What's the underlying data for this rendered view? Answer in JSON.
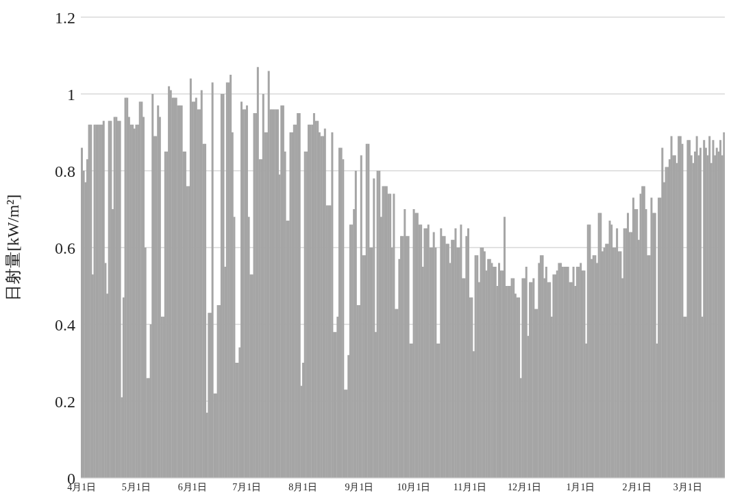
{
  "chart_data": {
    "type": "bar",
    "ylabel": "日射量[kW/m²]",
    "color": "#a5a5a5",
    "ylim": [
      0,
      1.2
    ],
    "yticks": [
      0,
      0.2,
      0.4,
      0.6,
      0.8,
      1,
      1.2
    ],
    "grid": "y",
    "legend": false,
    "categories": [
      "4月1日",
      null,
      null,
      null,
      null,
      null,
      null,
      null,
      null,
      null,
      null,
      null,
      null,
      null,
      null,
      null,
      null,
      null,
      null,
      null,
      null,
      null,
      null,
      null,
      null,
      null,
      null,
      null,
      null,
      null,
      "5月1日",
      null,
      null,
      null,
      null,
      null,
      null,
      null,
      null,
      null,
      null,
      null,
      null,
      null,
      null,
      null,
      null,
      null,
      null,
      null,
      null,
      null,
      null,
      null,
      null,
      null,
      null,
      null,
      null,
      null,
      null,
      "6月1日",
      null,
      null,
      null,
      null,
      null,
      null,
      null,
      null,
      null,
      null,
      null,
      null,
      null,
      null,
      null,
      null,
      null,
      null,
      null,
      null,
      null,
      null,
      null,
      null,
      null,
      null,
      null,
      null,
      null,
      "7月1日",
      null,
      null,
      null,
      null,
      null,
      null,
      null,
      null,
      null,
      null,
      null,
      null,
      null,
      null,
      null,
      null,
      null,
      null,
      null,
      null,
      null,
      null,
      null,
      null,
      null,
      null,
      null,
      null,
      null,
      null,
      "8月1日",
      null,
      null,
      null,
      null,
      null,
      null,
      null,
      null,
      null,
      null,
      null,
      null,
      null,
      null,
      null,
      null,
      null,
      null,
      null,
      null,
      null,
      null,
      null,
      null,
      null,
      null,
      null,
      null,
      null,
      null,
      "9月1日",
      null,
      null,
      null,
      null,
      null,
      null,
      null,
      null,
      null,
      null,
      null,
      null,
      null,
      null,
      null,
      null,
      null,
      null,
      null,
      null,
      null,
      null,
      null,
      null,
      null,
      null,
      null,
      null,
      null,
      "10月1日",
      null,
      null,
      null,
      null,
      null,
      null,
      null,
      null,
      null,
      null,
      null,
      null,
      null,
      null,
      null,
      null,
      null,
      null,
      null,
      null,
      null,
      null,
      null,
      null,
      null,
      null,
      null,
      null,
      null,
      null,
      "11月1日",
      null,
      null,
      null,
      null,
      null,
      null,
      null,
      null,
      null,
      null,
      null,
      null,
      null,
      null,
      null,
      null,
      null,
      null,
      null,
      null,
      null,
      null,
      null,
      null,
      null,
      null,
      null,
      null,
      null,
      "12月1日",
      null,
      null,
      null,
      null,
      null,
      null,
      null,
      null,
      null,
      null,
      null,
      null,
      null,
      null,
      null,
      null,
      null,
      null,
      null,
      null,
      null,
      null,
      null,
      null,
      null,
      null,
      null,
      null,
      null,
      null,
      "1月1日",
      null,
      null,
      null,
      null,
      null,
      null,
      null,
      null,
      null,
      null,
      null,
      null,
      null,
      null,
      null,
      null,
      null,
      null,
      null,
      null,
      null,
      null,
      null,
      null,
      null,
      null,
      null,
      null,
      null,
      null,
      "2月1日",
      null,
      null,
      null,
      null,
      null,
      null,
      null,
      null,
      null,
      null,
      null,
      null,
      null,
      null,
      null,
      null,
      null,
      null,
      null,
      null,
      null,
      null,
      null,
      null,
      null,
      null,
      null,
      "3月1日",
      null,
      null,
      null,
      null,
      null,
      null,
      null,
      null,
      null,
      null,
      null,
      null,
      null,
      null,
      null,
      null,
      null,
      null,
      null,
      null
    ],
    "values": [
      0.86,
      0.8,
      0.77,
      0.83,
      0.92,
      0.92,
      0.53,
      0.92,
      0.92,
      0.92,
      0.92,
      0.92,
      0.93,
      0.56,
      0.48,
      0.93,
      0.93,
      0.7,
      0.94,
      0.94,
      0.93,
      0.93,
      0.21,
      0.47,
      0.99,
      0.99,
      0.94,
      0.92,
      0.92,
      0.91,
      0.92,
      0.92,
      0.98,
      0.98,
      0.94,
      0.6,
      0.26,
      0.26,
      0.4,
      1.0,
      0.89,
      0.89,
      0.97,
      0.94,
      0.42,
      0.42,
      0.85,
      0.85,
      1.02,
      1.01,
      0.99,
      0.99,
      0.99,
      0.97,
      0.97,
      0.97,
      0.85,
      0.85,
      0.76,
      0.76,
      1.04,
      0.98,
      0.98,
      0.99,
      0.96,
      0.96,
      1.01,
      0.87,
      0.87,
      0.17,
      0.43,
      0.43,
      1.03,
      0.22,
      0.22,
      0.45,
      0.45,
      1.0,
      1.0,
      0.55,
      1.03,
      1.03,
      1.05,
      0.9,
      0.68,
      0.3,
      0.3,
      0.34,
      0.98,
      0.96,
      0.96,
      0.97,
      0.68,
      0.53,
      0.53,
      0.95,
      0.95,
      1.07,
      0.83,
      0.83,
      1.0,
      0.9,
      0.9,
      1.06,
      0.96,
      0.96,
      0.96,
      0.96,
      0.96,
      0.79,
      0.97,
      0.97,
      0.85,
      0.67,
      0.67,
      0.9,
      0.9,
      0.92,
      0.92,
      0.95,
      0.95,
      0.24,
      0.3,
      0.85,
      0.85,
      0.92,
      0.92,
      0.92,
      0.95,
      0.93,
      0.93,
      0.9,
      0.89,
      0.89,
      0.91,
      0.71,
      0.71,
      0.71,
      0.9,
      0.38,
      0.38,
      0.42,
      0.86,
      0.86,
      0.83,
      0.23,
      0.23,
      0.32,
      0.66,
      0.66,
      0.7,
      0.8,
      0.45,
      0.45,
      0.84,
      0.58,
      0.58,
      0.87,
      0.87,
      0.6,
      0.6,
      0.78,
      0.38,
      0.8,
      0.8,
      0.68,
      0.76,
      0.76,
      0.76,
      0.74,
      0.74,
      0.6,
      0.74,
      0.44,
      0.44,
      0.57,
      0.63,
      0.63,
      0.7,
      0.63,
      0.63,
      0.35,
      0.35,
      0.7,
      0.69,
      0.69,
      0.66,
      0.66,
      0.55,
      0.65,
      0.65,
      0.66,
      0.6,
      0.6,
      0.64,
      0.6,
      0.35,
      0.35,
      0.65,
      0.63,
      0.63,
      0.61,
      0.61,
      0.56,
      0.62,
      0.62,
      0.65,
      0.6,
      0.6,
      0.66,
      0.52,
      0.52,
      0.63,
      0.65,
      0.47,
      0.47,
      0.33,
      0.58,
      0.58,
      0.51,
      0.6,
      0.6,
      0.59,
      0.54,
      0.57,
      0.57,
      0.56,
      0.55,
      0.55,
      0.5,
      0.56,
      0.54,
      0.54,
      0.68,
      0.5,
      0.5,
      0.5,
      0.52,
      0.52,
      0.48,
      0.47,
      0.47,
      0.26,
      0.52,
      0.52,
      0.55,
      0.37,
      0.51,
      0.51,
      0.52,
      0.44,
      0.44,
      0.56,
      0.58,
      0.58,
      0.52,
      0.55,
      0.51,
      0.51,
      0.42,
      0.53,
      0.53,
      0.54,
      0.56,
      0.56,
      0.55,
      0.55,
      0.55,
      0.55,
      0.51,
      0.51,
      0.55,
      0.5,
      0.55,
      0.55,
      0.56,
      0.54,
      0.54,
      0.35,
      0.66,
      0.66,
      0.57,
      0.58,
      0.58,
      0.56,
      0.69,
      0.69,
      0.59,
      0.6,
      0.61,
      0.61,
      0.67,
      0.66,
      0.6,
      0.6,
      0.65,
      0.59,
      0.59,
      0.52,
      0.65,
      0.65,
      0.69,
      0.64,
      0.64,
      0.73,
      0.7,
      0.7,
      0.62,
      0.74,
      0.76,
      0.76,
      0.7,
      0.58,
      0.58,
      0.73,
      0.69,
      0.69,
      0.35,
      0.73,
      0.73,
      0.86,
      0.77,
      0.81,
      0.81,
      0.83,
      0.89,
      0.84,
      0.84,
      0.82,
      0.89,
      0.89,
      0.87,
      0.42,
      0.42,
      0.88,
      0.88,
      0.84,
      0.82,
      0.85,
      0.89,
      0.84,
      0.86,
      0.42,
      0.88,
      0.86,
      0.84,
      0.89,
      0.82,
      0.88,
      0.84,
      0.86,
      0.85,
      0.88,
      0.84,
      0.9
    ]
  }
}
